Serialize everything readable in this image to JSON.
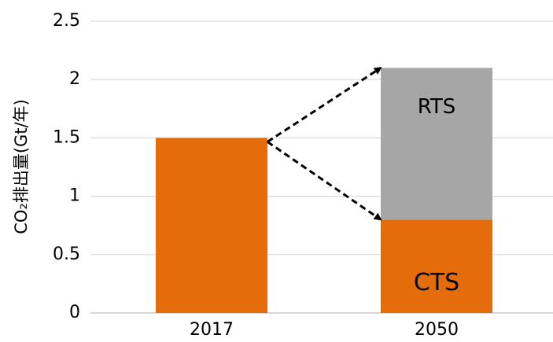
{
  "chart_data": {
    "type": "stacked_bar",
    "y_label": "CO₂排出量(Gt/年)",
    "categories": [
      "2017",
      "2050"
    ],
    "series": [
      {
        "name": "CTS",
        "color": "#e46c0a",
        "values": [
          1.5,
          0.8
        ]
      },
      {
        "name": "RTS",
        "color": "#a6a6a6",
        "values": [
          null,
          1.3
        ]
      }
    ],
    "ylim": [
      0,
      2.5
    ],
    "yticks": [
      0,
      0.5,
      1,
      1.5,
      2,
      2.5
    ],
    "grid": true
  }
}
